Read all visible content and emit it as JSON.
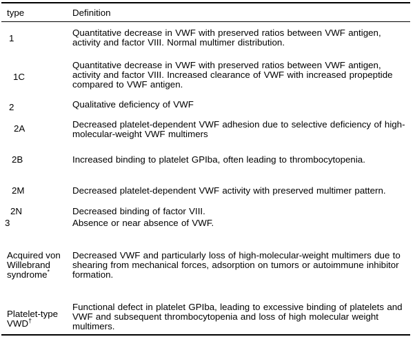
{
  "table": {
    "colors": {
      "text": "#000000",
      "border": "#000000",
      "background": "#ffffff"
    },
    "header": {
      "type": "type",
      "definition": "Definition"
    },
    "rows": [
      {
        "type": "1",
        "definition": "Quantitative decrease in VWF with preserved ratios between VWF antigen,\nactivity and factor VIII. Normal multimer distribution."
      },
      {
        "type": "1C",
        "definition": "Quantitative decrease in VWF with preserved ratios between VWF antigen,\nactivity and factor VIII. Increased clearance of VWF with increased propeptide\ncompared to VWF antigen."
      },
      {
        "type": "2",
        "definition": "Qualitative deficiency of VWF"
      },
      {
        "type": "2A",
        "definition": "Decreased platelet-dependent VWF adhesion due to selective deficiency of high-\nmolecular-weight VWF multimers"
      },
      {
        "type": "2B",
        "definition": "Increased binding to platelet GPIba, often leading to thrombocytopenia."
      },
      {
        "type": "2M",
        "definition": "Decreased platelet-dependent VWF activity with preserved multimer pattern."
      },
      {
        "type": "2N",
        "definition": "Decreased binding of factor VIII."
      },
      {
        "type": "3",
        "definition": "Absence or near absence of VWF."
      },
      {
        "type": "Acquired von Willebrand syndrome",
        "type_sup": "*",
        "definition": "Decreased VWF and particularly loss of high-molecular-weight multimers due to\nshearing from mechanical forces, adsorption on tumors or autoimmune inhibitor\nformation."
      },
      {
        "type": "Platelet-type VWD",
        "type_sup": "†",
        "definition": "Functional defect in platelet GPIba, leading to excessive binding of platelets and\nVWF and subsequent thrombocytopenia and loss of high molecular weight\nmultimers."
      }
    ]
  }
}
